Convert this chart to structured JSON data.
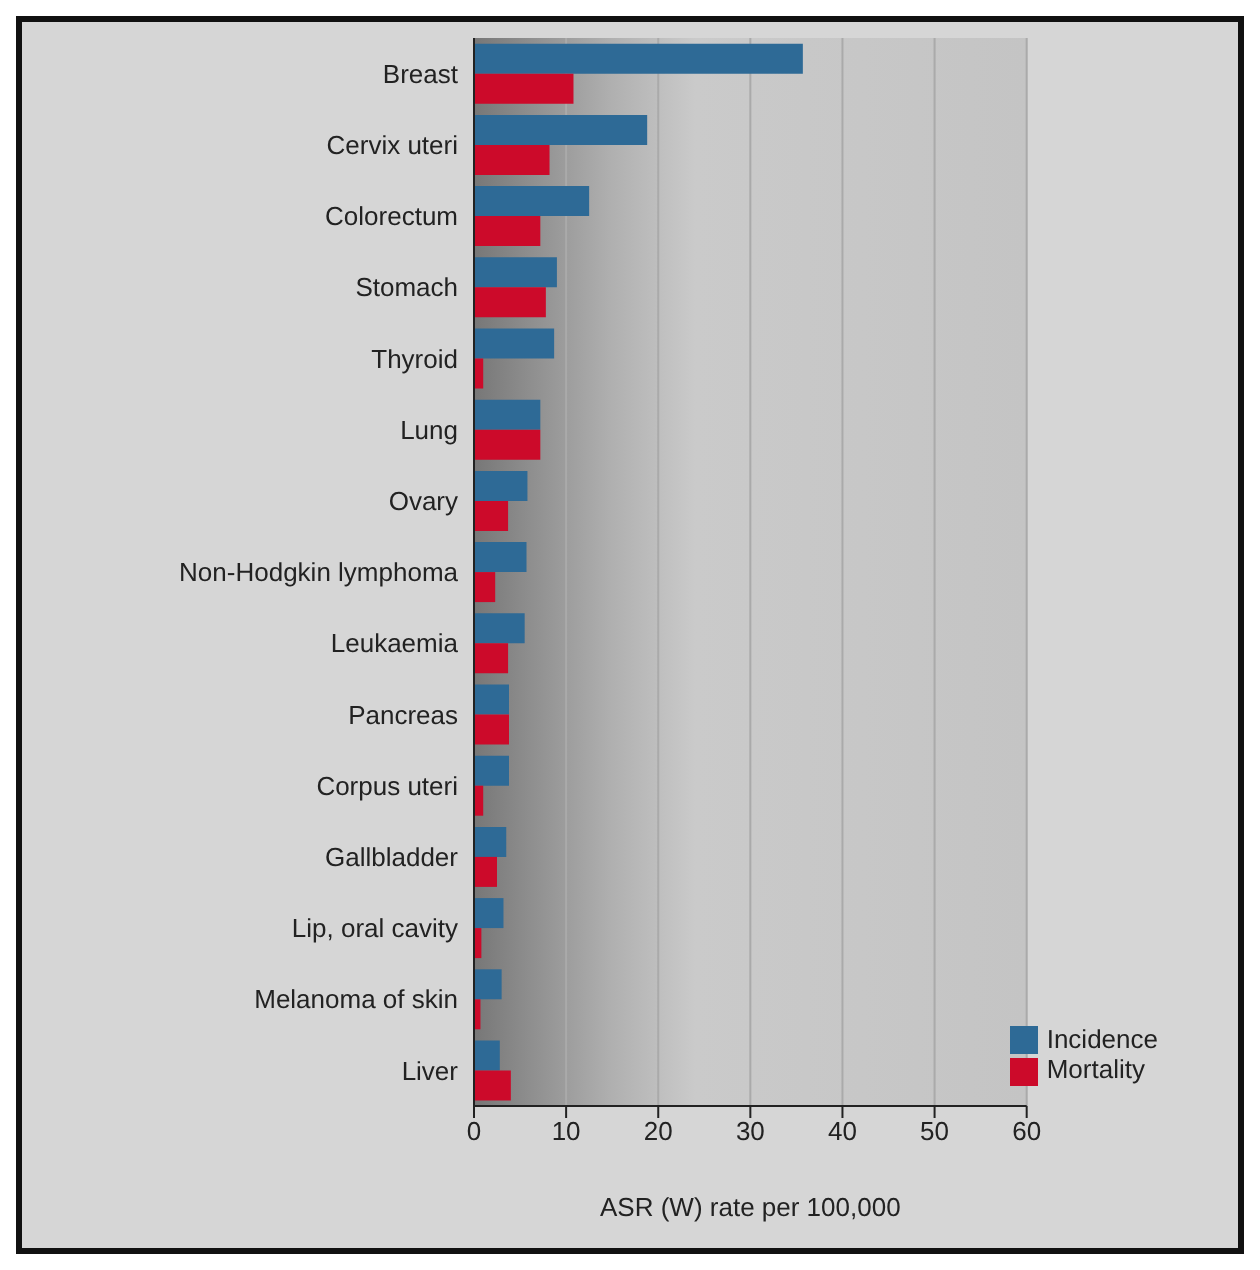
{
  "chart_data": {
    "type": "bar",
    "orientation": "horizontal",
    "xlabel": "ASR (W) rate per 100,000",
    "categories": [
      "Breast",
      "Cervix uteri",
      "Colorectum",
      "Stomach",
      "Thyroid",
      "Lung",
      "Ovary",
      "Non-Hodgkin lymphoma",
      "Leukaemia",
      "Pancreas",
      "Corpus uteri",
      "Gallbladder",
      "Lip, oral cavity",
      "Melanoma of skin",
      "Liver"
    ],
    "series": [
      {
        "name": "Incidence",
        "color": "#2e6a96",
        "values": [
          35.7,
          18.8,
          12.5,
          9.0,
          8.7,
          7.2,
          5.8,
          5.7,
          5.5,
          3.8,
          3.8,
          3.5,
          3.2,
          3.0,
          2.8
        ]
      },
      {
        "name": "Mortality",
        "color": "#cc0a2a",
        "values": [
          10.8,
          8.2,
          7.2,
          7.8,
          1.0,
          7.2,
          3.7,
          2.3,
          3.7,
          3.8,
          1.0,
          2.5,
          0.8,
          0.7,
          4.0
        ]
      }
    ],
    "xlim": [
      0,
      60
    ],
    "xticks": [
      0,
      10,
      20,
      30,
      40,
      50,
      60
    ],
    "grid": "x",
    "legend": "bottom right"
  }
}
